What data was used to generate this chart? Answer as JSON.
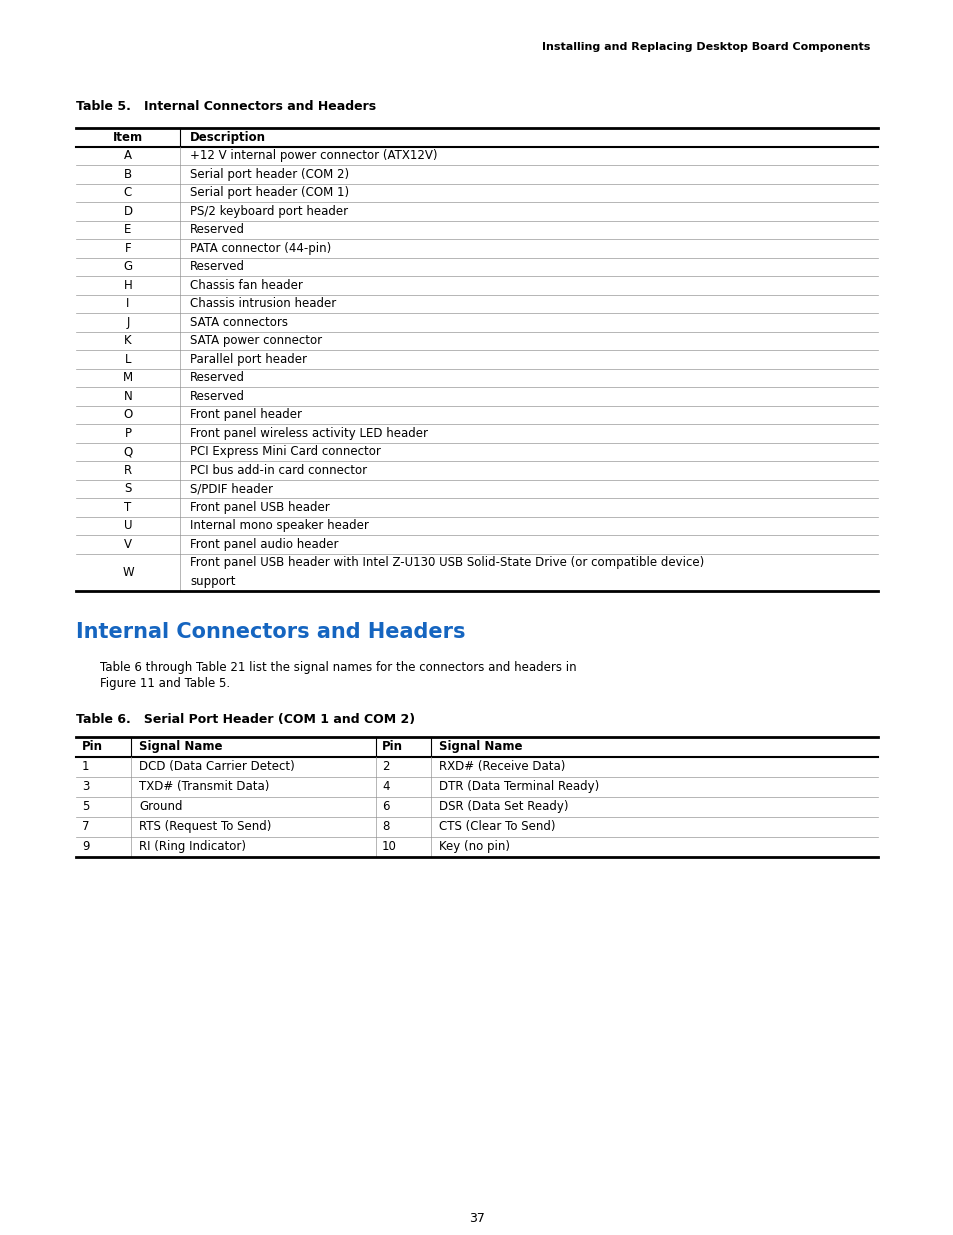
{
  "page_header": "Installing and Replacing Desktop Board Components",
  "table5_title": "Table 5.   Internal Connectors and Headers",
  "table5_headers": [
    "Item",
    "Description"
  ],
  "table5_rows": [
    [
      "A",
      "+12 V internal power connector (ATX12V)"
    ],
    [
      "B",
      "Serial port header (COM 2)"
    ],
    [
      "C",
      "Serial port header (COM 1)"
    ],
    [
      "D",
      "PS/2 keyboard port header"
    ],
    [
      "E",
      "Reserved"
    ],
    [
      "F",
      "PATA connector (44-pin)"
    ],
    [
      "G",
      "Reserved"
    ],
    [
      "H",
      "Chassis fan header"
    ],
    [
      "I",
      "Chassis intrusion header"
    ],
    [
      "J",
      "SATA connectors"
    ],
    [
      "K",
      "SATA power connector"
    ],
    [
      "L",
      "Parallel port header"
    ],
    [
      "M",
      "Reserved"
    ],
    [
      "N",
      "Reserved"
    ],
    [
      "O",
      "Front panel header"
    ],
    [
      "P",
      "Front panel wireless activity LED header"
    ],
    [
      "Q",
      "PCI Express Mini Card connector"
    ],
    [
      "R",
      "PCI bus add-in card connector"
    ],
    [
      "S",
      "S/PDIF header"
    ],
    [
      "T",
      "Front panel USB header"
    ],
    [
      "U",
      "Internal mono speaker header"
    ],
    [
      "V",
      "Front panel audio header"
    ],
    [
      "W",
      "Front panel USB header with Intel Z-U130 USB Solid-State Drive (or compatible device)\nsupport"
    ]
  ],
  "section_title": "Internal Connectors and Headers",
  "section_body_line1": "Table 6 through Table 21 list the signal names for the connectors and headers in",
  "section_body_line2": "Figure 11 and Table 5.",
  "table6_title": "Table 6.   Serial Port Header (COM 1 and COM 2)",
  "table6_headers": [
    "Pin",
    "Signal Name",
    "Pin",
    "Signal Name"
  ],
  "table6_rows": [
    [
      "1",
      "DCD (Data Carrier Detect)",
      "2",
      "RXD# (Receive Data)"
    ],
    [
      "3",
      "TXD# (Transmit Data)",
      "4",
      "DTR (Data Terminal Ready)"
    ],
    [
      "5",
      "Ground",
      "6",
      "DSR (Data Set Ready)"
    ],
    [
      "7",
      "RTS (Request To Send)",
      "8",
      "CTS (Clear To Send)"
    ],
    [
      "9",
      "RI (Ring Indicator)",
      "10",
      "Key (no pin)"
    ]
  ],
  "page_number": "37",
  "bg_color": "#ffffff",
  "text_color": "#000000",
  "section_title_color": "#1565c0"
}
